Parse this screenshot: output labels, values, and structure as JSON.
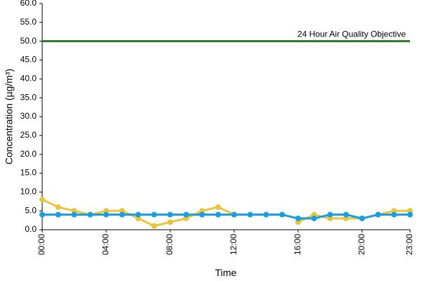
{
  "chart_data": {
    "type": "line",
    "y_label": "Concentration (µg/m³)",
    "x_label": "Time",
    "categories": [
      "00:00",
      null,
      null,
      null,
      "04:00",
      null,
      null,
      null,
      "08:00",
      null,
      null,
      null,
      "12:00",
      null,
      null,
      null,
      "16:00",
      null,
      null,
      null,
      "20:00",
      null,
      null,
      "23:00"
    ],
    "series": [
      {
        "color": "#e8c53a",
        "values": [
          8,
          6,
          5,
          4,
          5,
          5,
          3,
          1,
          2,
          3,
          5,
          6,
          4,
          null,
          null,
          null,
          2,
          4,
          3,
          3,
          3,
          4,
          5,
          5
        ]
      },
      {
        "color": "#1a9ee0",
        "values": [
          4,
          4,
          4,
          4,
          4,
          4,
          4,
          4,
          4,
          4,
          4,
          4,
          4,
          4,
          4,
          4,
          3,
          3,
          4,
          4,
          3,
          4,
          4,
          4
        ]
      }
    ],
    "objective": {
      "value": 50,
      "label": "24 Hour Air Quality Objective",
      "color": "#2a7a2a"
    },
    "ylim": [
      0,
      60
    ],
    "yticks": [
      {
        "value": 0,
        "label": "0.0"
      },
      {
        "value": 5,
        "label": "5.0"
      },
      {
        "value": 10,
        "label": "10.0"
      },
      {
        "value": 15,
        "label": "15.0"
      },
      {
        "value": 20,
        "label": "20.0"
      },
      {
        "value": 25,
        "label": "25.0"
      },
      {
        "value": 30,
        "label": "30.0"
      },
      {
        "value": 35,
        "label": "35.0"
      },
      {
        "value": 40,
        "label": "40.0"
      },
      {
        "value": 45,
        "label": "45.0"
      },
      {
        "value": 50,
        "label": "50.0"
      },
      {
        "value": 55,
        "label": "55.0"
      },
      {
        "value": 60,
        "label": "60.0"
      }
    ]
  }
}
